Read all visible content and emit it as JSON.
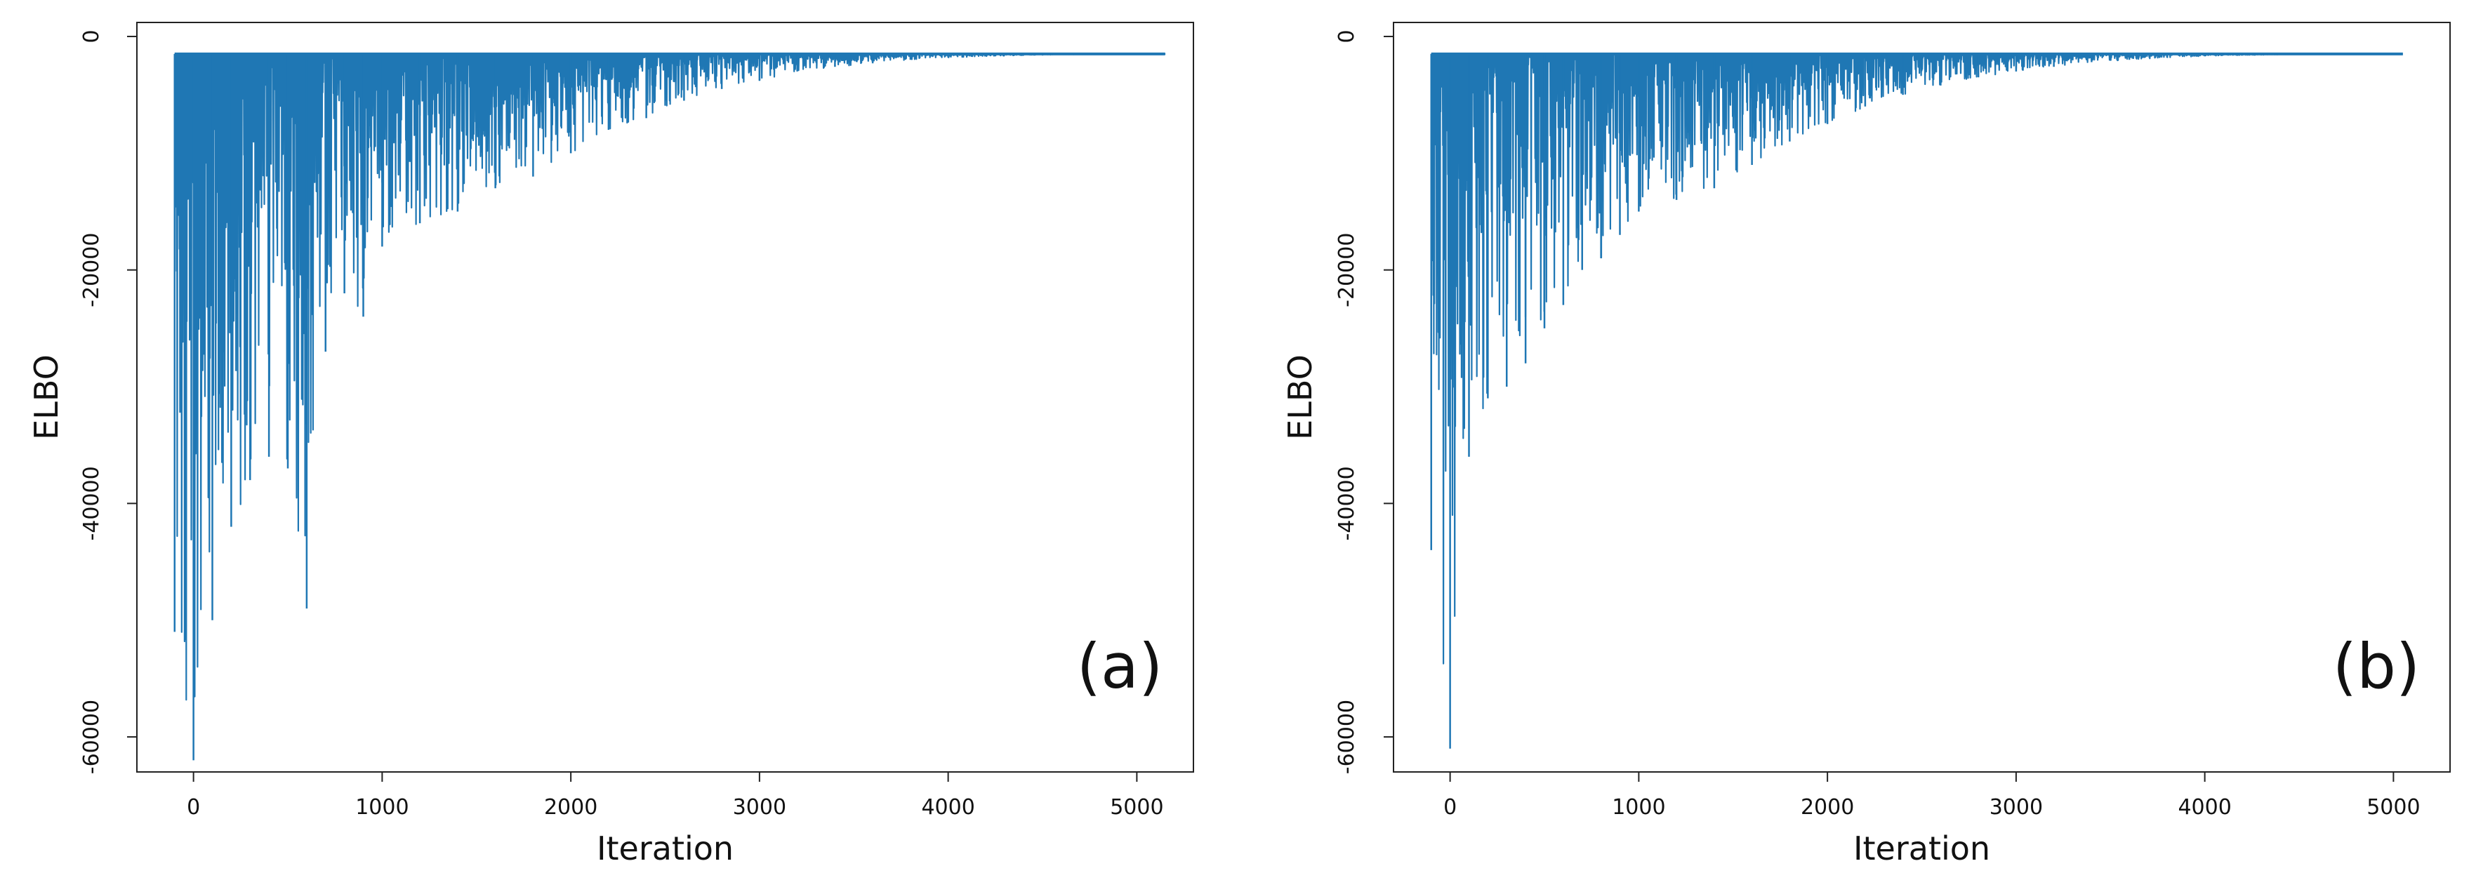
{
  "chart_data": [
    {
      "type": "line",
      "panel_label": "(a)",
      "xlabel": "Iteration",
      "ylabel": "ELBO",
      "xticks": [
        0,
        1000,
        2000,
        3000,
        4000,
        5000
      ],
      "xtick_labels": [
        "0",
        "1000",
        "2000",
        "3000",
        "4000",
        "5000"
      ],
      "yticks": [
        0,
        -20000,
        -40000,
        -60000
      ],
      "ytick_labels": [
        "0",
        "-20000",
        "-40000",
        "-60000"
      ],
      "xlim": [
        -300,
        5300
      ],
      "ylim": [
        -63000,
        1200
      ],
      "color": "#1f77b4",
      "grid": false,
      "series": [
        {
          "x": [
            -100,
            0,
            100,
            200,
            300,
            400,
            500,
            600,
            700,
            800,
            900,
            1000,
            1200,
            1400,
            1600,
            1800,
            2000,
            2200,
            2400,
            2600,
            2800,
            3000,
            3200,
            3400,
            3600,
            3800,
            4000,
            4200,
            4400,
            4600,
            4800,
            5000,
            5150
          ],
          "values": [
            -51000,
            -62000,
            -50000,
            -42000,
            -38000,
            -36000,
            -37000,
            -49000,
            -27000,
            -22000,
            -24000,
            -18000,
            -16000,
            -15000,
            -13000,
            -12000,
            -10000,
            -8000,
            -7000,
            -5500,
            -4500,
            -3800,
            -3000,
            -2600,
            -2300,
            -2000,
            -1800,
            -1700,
            -1600,
            -1550,
            -1520,
            -1500,
            -1500
          ]
        }
      ]
    },
    {
      "type": "line",
      "panel_label": "(b)",
      "xlabel": "Iteration",
      "ylabel": "ELBO",
      "xticks": [
        0,
        1000,
        2000,
        3000,
        4000,
        5000
      ],
      "xtick_labels": [
        "0",
        "1000",
        "2000",
        "3000",
        "4000",
        "5000"
      ],
      "yticks": [
        0,
        -20000,
        -40000,
        -60000
      ],
      "ytick_labels": [
        "0",
        "-20000",
        "-40000",
        "-60000"
      ],
      "xlim": [
        -300,
        5300
      ],
      "ylim": [
        -63000,
        1200
      ],
      "color": "#1f77b4",
      "grid": false,
      "series": [
        {
          "x": [
            -100,
            0,
            100,
            200,
            300,
            400,
            500,
            600,
            700,
            800,
            900,
            1000,
            1200,
            1400,
            1600,
            1800,
            2000,
            2200,
            2400,
            2600,
            2800,
            3000,
            3200,
            3400,
            3600,
            3800,
            4000,
            4200,
            4400,
            4600,
            4800,
            5000,
            5050
          ],
          "values": [
            -44000,
            -61000,
            -36000,
            -31000,
            -30000,
            -28000,
            -25000,
            -23000,
            -20000,
            -19000,
            -17000,
            -15000,
            -14000,
            -13000,
            -11000,
            -9000,
            -7500,
            -6000,
            -5000,
            -4200,
            -3500,
            -3000,
            -2600,
            -2200,
            -2000,
            -1800,
            -1700,
            -1600,
            -1550,
            -1520,
            -1500,
            -1500,
            -1500
          ]
        }
      ]
    }
  ]
}
